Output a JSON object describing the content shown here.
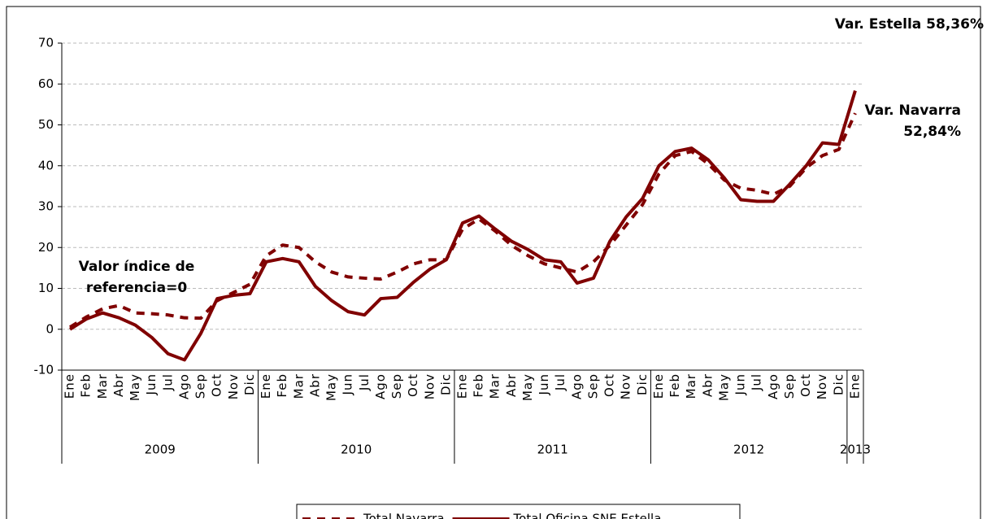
{
  "chart_data": {
    "type": "line",
    "categories": [
      "Ene",
      "Feb",
      "Mar",
      "Abr",
      "May",
      "Jun",
      "Jul",
      "Ago",
      "Sep",
      "Oct",
      "Nov",
      "Dic",
      "Ene",
      "Feb",
      "Mar",
      "Abr",
      "May",
      "Jun",
      "Jul",
      "Ago",
      "Sep",
      "Oct",
      "Nov",
      "Dic",
      "Ene",
      "Feb",
      "Mar",
      "Abr",
      "May",
      "Jun",
      "Jul",
      "Ago",
      "Sep",
      "Oct",
      "Nov",
      "Dic",
      "Ene",
      "Feb",
      "Mar",
      "Abr",
      "May",
      "Jun",
      "Jul",
      "Ago",
      "Sep",
      "Oct",
      "Nov",
      "Dic",
      "Ene"
    ],
    "groups": [
      {
        "label": "2009",
        "count": 12
      },
      {
        "label": "2010",
        "count": 12
      },
      {
        "label": "2011",
        "count": 12
      },
      {
        "label": "2012",
        "count": 12
      },
      {
        "label": "2013",
        "count": 1
      }
    ],
    "series": [
      {
        "name": "Total Navarra",
        "color": "#800000",
        "dashed": true,
        "values": [
          0.5,
          3,
          5,
          5.8,
          4,
          3.8,
          3.5,
          2.8,
          2.7,
          7,
          9,
          11,
          18,
          20.6,
          20,
          16.5,
          14,
          12.8,
          12.5,
          12.3,
          14,
          16,
          17,
          17,
          24.5,
          27,
          24,
          20.5,
          18,
          16,
          15,
          14,
          16.5,
          20.5,
          25.5,
          30.5,
          38,
          42.5,
          43.5,
          40.5,
          36.5,
          34.5,
          34,
          33,
          35,
          39.5,
          42.5,
          44,
          52.84
        ]
      },
      {
        "name": "Total Oficina SNE Estella",
        "color": "#800000",
        "dashed": false,
        "values": [
          0,
          2.5,
          4,
          2.8,
          1,
          -2,
          -6,
          -7.5,
          -1,
          7.5,
          8.3,
          8.7,
          16.5,
          17.3,
          16.5,
          10.5,
          7,
          4.3,
          3.5,
          7.5,
          7.8,
          11.5,
          14.7,
          17,
          26,
          27.7,
          24.5,
          21.5,
          19.5,
          17,
          16.5,
          11.3,
          12.5,
          21.5,
          27.5,
          32,
          40,
          43.5,
          44.3,
          41.5,
          37,
          31.7,
          31.3,
          31.3,
          35.5,
          40,
          45.6,
          45.2,
          58.36
        ]
      }
    ],
    "ylim": [
      -10,
      70
    ],
    "yticks": [
      -10,
      0,
      10,
      20,
      30,
      40,
      50,
      60,
      70
    ],
    "grid": true,
    "annotations": [
      {
        "lines": [
          "Var. Estella 58,36%"
        ]
      },
      {
        "lines": [
          "Var. Navarra",
          "52,84%"
        ]
      },
      {
        "lines": [
          "Valor índice de",
          "referencia=0"
        ]
      }
    ],
    "legend": "bottom"
  }
}
